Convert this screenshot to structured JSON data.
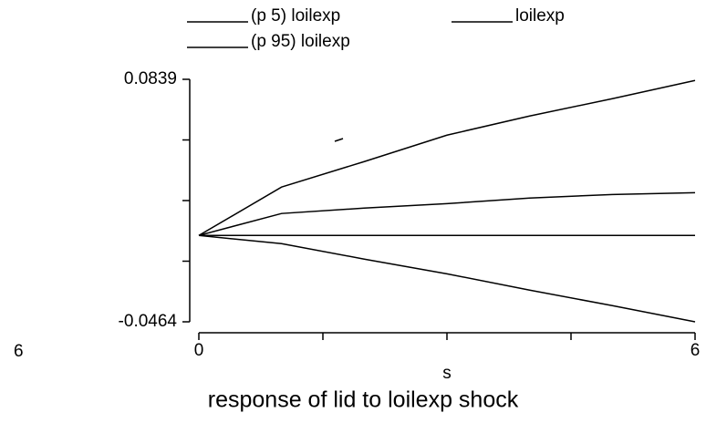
{
  "chart_data": {
    "type": "line",
    "title": "response of lid to loilexp shock",
    "x_label": "s",
    "annotation": "6",
    "x": [
      0,
      1,
      2,
      3,
      4,
      5,
      6
    ],
    "series": [
      {
        "name": "(p 5) loilexp",
        "color": "#000000",
        "values": [
          0,
          -0.0044,
          -0.0127,
          -0.0206,
          -0.0294,
          -0.0377,
          -0.0464
        ]
      },
      {
        "name": "loilexp",
        "color": "#000000",
        "values": [
          0,
          0.0118,
          0.0147,
          0.0171,
          0.0201,
          0.022,
          0.023
        ]
      },
      {
        "name": "(p 95) loilexp",
        "color": "#000000",
        "values": [
          0,
          0.026,
          0.0397,
          0.0539,
          0.0642,
          0.0735,
          0.0833
        ]
      }
    ],
    "refline": 0,
    "xlim": [
      0,
      6
    ],
    "xticks": [
      0,
      6
    ],
    "xticks_minor": [
      1.5,
      3,
      4.5
    ],
    "ylim": [
      -0.0464,
      0.0839
    ],
    "yticks": [
      -0.0464,
      0.0839
    ],
    "yticks_minor": [
      -0.013825,
      0.01875,
      0.051325
    ]
  }
}
